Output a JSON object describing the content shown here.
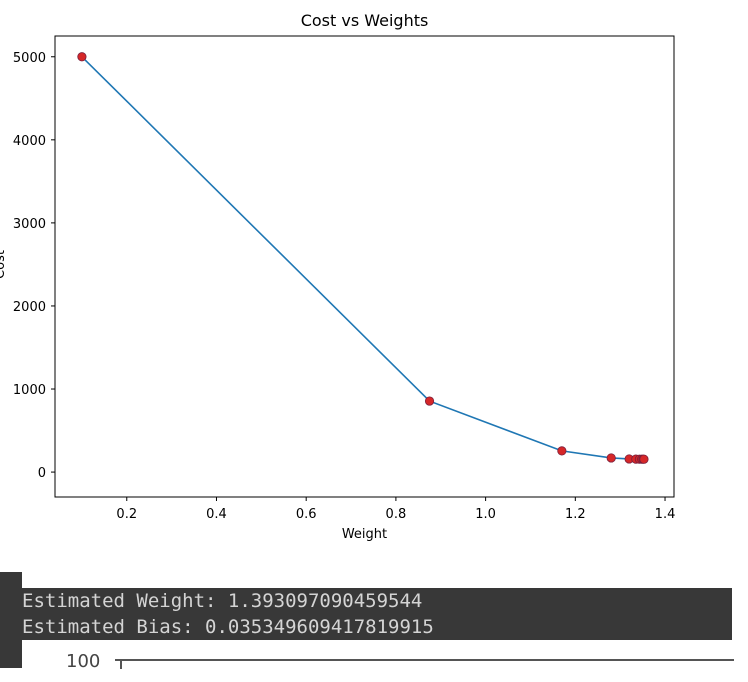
{
  "chart_data": {
    "type": "line",
    "title": "Cost vs Weights",
    "xlabel": "Weight",
    "ylabel": "Cost",
    "xlim": [
      0.04,
      1.42
    ],
    "ylim": [
      -300,
      5250
    ],
    "x_ticks": [
      0.2,
      0.4,
      0.6,
      0.8,
      1.0,
      1.2,
      1.4
    ],
    "x_tick_labels": [
      "0.2",
      "0.4",
      "0.6",
      "0.8",
      "1.0",
      "1.2",
      "1.4"
    ],
    "y_ticks": [
      0,
      1000,
      2000,
      3000,
      4000,
      5000
    ],
    "y_tick_labels": [
      "0",
      "1000",
      "2000",
      "3000",
      "4000",
      "5000"
    ],
    "grid": false,
    "series": [
      {
        "line_color": "#1f77b4",
        "marker_color": "#d62728",
        "x": [
          0.1,
          0.875,
          1.17,
          1.28,
          1.32,
          1.335,
          1.343,
          1.348,
          1.351,
          1.353
        ],
        "y": [
          5000,
          855,
          255,
          170,
          158,
          156,
          155,
          155,
          155,
          155
        ]
      }
    ]
  },
  "output": {
    "line1": "Estimated Weight: 1.393097090459544",
    "line2": "Estimated Bias: 0.035349609417819915"
  },
  "partial_next_chart": {
    "tick_label": "100"
  }
}
